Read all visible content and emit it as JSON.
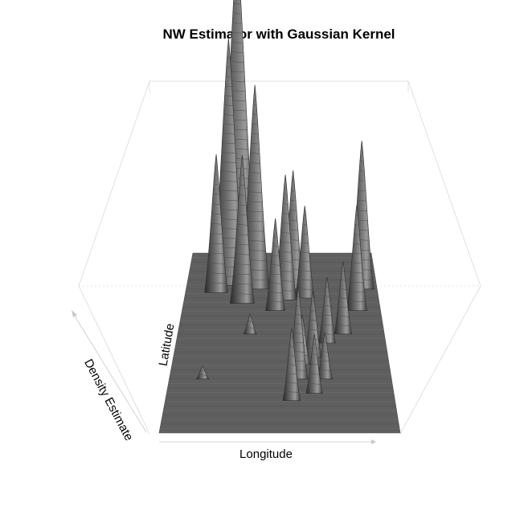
{
  "chart_data": {
    "type": "surface",
    "title": "NW Estimator with Gaussian Kernel",
    "xlabel": "Longitude",
    "ylabel": "Latitude",
    "zlabel": "Density Estimate",
    "peaks": [
      {
        "x": 0.22,
        "y": 0.82,
        "z": 0.75
      },
      {
        "x": 0.26,
        "y": 0.88,
        "z": 1.0
      },
      {
        "x": 0.36,
        "y": 0.8,
        "z": 0.62
      },
      {
        "x": 0.3,
        "y": 0.72,
        "z": 0.45
      },
      {
        "x": 0.16,
        "y": 0.78,
        "z": 0.42
      },
      {
        "x": 0.52,
        "y": 0.74,
        "z": 0.38
      },
      {
        "x": 0.56,
        "y": 0.8,
        "z": 0.36
      },
      {
        "x": 0.62,
        "y": 0.75,
        "z": 0.28
      },
      {
        "x": 0.47,
        "y": 0.68,
        "z": 0.28
      },
      {
        "x": 0.92,
        "y": 0.8,
        "z": 0.45
      },
      {
        "x": 0.88,
        "y": 0.68,
        "z": 0.32
      },
      {
        "x": 0.8,
        "y": 0.55,
        "z": 0.22
      },
      {
        "x": 0.72,
        "y": 0.5,
        "z": 0.2
      },
      {
        "x": 0.65,
        "y": 0.42,
        "z": 0.2
      },
      {
        "x": 0.58,
        "y": 0.3,
        "z": 0.28
      },
      {
        "x": 0.55,
        "y": 0.18,
        "z": 0.22
      },
      {
        "x": 0.65,
        "y": 0.22,
        "z": 0.18
      },
      {
        "x": 0.6,
        "y": 0.38,
        "z": 0.15
      },
      {
        "x": 0.7,
        "y": 0.3,
        "z": 0.14
      },
      {
        "x": 0.35,
        "y": 0.55,
        "z": 0.06
      },
      {
        "x": 0.15,
        "y": 0.3,
        "z": 0.04
      }
    ]
  }
}
